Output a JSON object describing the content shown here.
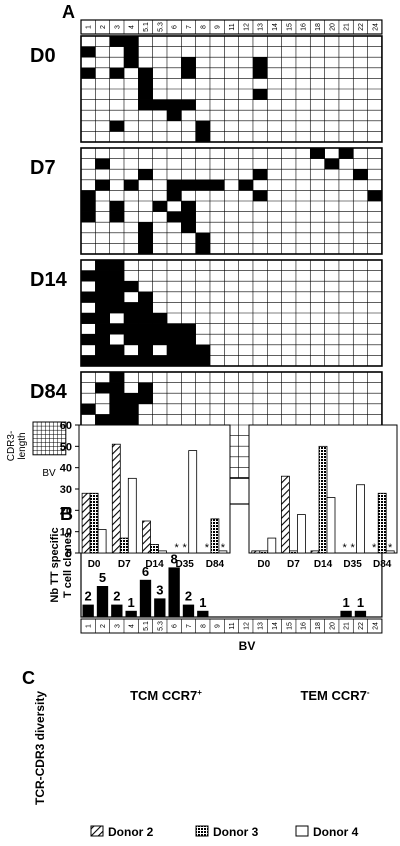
{
  "chart_data": [
    {
      "panel": "A",
      "type": "heatmap",
      "bv_labels": [
        "1",
        "2",
        "3",
        "4",
        "5.1",
        "5.3",
        "6",
        "7",
        "8",
        "9",
        "11",
        "12",
        "13",
        "14",
        "15",
        "16",
        "18",
        "20",
        "21",
        "22",
        "24"
      ],
      "rows_per_block": 10,
      "blocks": [
        {
          "label": "D0",
          "filled": [
            [
              0,
              2
            ],
            [
              0,
              3
            ],
            [
              1,
              0
            ],
            [
              1,
              3
            ],
            [
              2,
              3
            ],
            [
              2,
              7
            ],
            [
              2,
              12
            ],
            [
              3,
              0
            ],
            [
              3,
              2
            ],
            [
              3,
              4
            ],
            [
              3,
              7
            ],
            [
              3,
              12
            ],
            [
              4,
              4
            ],
            [
              5,
              4
            ],
            [
              5,
              12
            ],
            [
              6,
              4
            ],
            [
              6,
              5
            ],
            [
              6,
              6
            ],
            [
              6,
              7
            ],
            [
              7,
              6
            ],
            [
              8,
              2
            ],
            [
              8,
              8
            ],
            [
              9,
              8
            ]
          ]
        },
        {
          "label": "D7",
          "filled": [
            [
              0,
              16
            ],
            [
              0,
              18
            ],
            [
              1,
              1
            ],
            [
              1,
              17
            ],
            [
              2,
              4
            ],
            [
              2,
              12
            ],
            [
              2,
              19
            ],
            [
              3,
              1
            ],
            [
              3,
              3
            ],
            [
              3,
              6
            ],
            [
              3,
              7
            ],
            [
              3,
              8
            ],
            [
              3,
              9
            ],
            [
              3,
              11
            ],
            [
              4,
              0
            ],
            [
              4,
              6
            ],
            [
              4,
              12
            ],
            [
              4,
              20
            ],
            [
              5,
              0
            ],
            [
              5,
              2
            ],
            [
              5,
              5
            ],
            [
              5,
              7
            ],
            [
              6,
              0
            ],
            [
              6,
              2
            ],
            [
              6,
              6
            ],
            [
              6,
              7
            ],
            [
              7,
              4
            ],
            [
              7,
              7
            ],
            [
              8,
              4
            ],
            [
              8,
              8
            ],
            [
              9,
              4
            ],
            [
              9,
              8
            ]
          ]
        },
        {
          "label": "D14",
          "filled": [
            [
              0,
              1
            ],
            [
              0,
              2
            ],
            [
              1,
              0
            ],
            [
              1,
              1
            ],
            [
              1,
              2
            ],
            [
              2,
              1
            ],
            [
              2,
              2
            ],
            [
              2,
              3
            ],
            [
              3,
              0
            ],
            [
              3,
              1
            ],
            [
              3,
              2
            ],
            [
              3,
              4
            ],
            [
              4,
              1
            ],
            [
              4,
              2
            ],
            [
              4,
              3
            ],
            [
              4,
              4
            ],
            [
              5,
              0
            ],
            [
              5,
              1
            ],
            [
              5,
              3
            ],
            [
              5,
              4
            ],
            [
              5,
              5
            ],
            [
              6,
              1
            ],
            [
              6,
              2
            ],
            [
              6,
              3
            ],
            [
              6,
              4
            ],
            [
              6,
              5
            ],
            [
              6,
              6
            ],
            [
              6,
              7
            ],
            [
              7,
              0
            ],
            [
              7,
              1
            ],
            [
              7,
              3
            ],
            [
              7,
              4
            ],
            [
              7,
              5
            ],
            [
              7,
              6
            ],
            [
              7,
              7
            ],
            [
              8,
              1
            ],
            [
              8,
              2
            ],
            [
              8,
              4
            ],
            [
              8,
              6
            ],
            [
              8,
              7
            ],
            [
              8,
              8
            ],
            [
              9,
              0
            ],
            [
              9,
              1
            ],
            [
              9,
              2
            ],
            [
              9,
              3
            ],
            [
              9,
              4
            ],
            [
              9,
              5
            ],
            [
              9,
              6
            ],
            [
              9,
              7
            ],
            [
              9,
              8
            ]
          ]
        },
        {
          "label": "D84",
          "filled": [
            [
              0,
              2
            ],
            [
              1,
              1
            ],
            [
              1,
              2
            ],
            [
              1,
              4
            ],
            [
              2,
              2
            ],
            [
              2,
              3
            ],
            [
              2,
              4
            ],
            [
              3,
              0
            ],
            [
              3,
              2
            ],
            [
              3,
              3
            ],
            [
              4,
              1
            ],
            [
              4,
              2
            ],
            [
              4,
              3
            ],
            [
              5,
              1
            ],
            [
              5,
              2
            ],
            [
              5,
              4
            ],
            [
              6,
              0
            ],
            [
              6,
              1
            ],
            [
              6,
              2
            ],
            [
              6,
              3
            ],
            [
              6,
              12
            ],
            [
              6,
              17
            ],
            [
              6,
              19
            ],
            [
              7,
              0
            ],
            [
              7,
              1
            ],
            [
              7,
              2
            ],
            [
              7,
              3
            ],
            [
              8,
              0
            ],
            [
              8,
              1
            ],
            [
              8,
              3
            ],
            [
              8,
              5
            ],
            [
              9,
              0
            ],
            [
              9,
              1
            ],
            [
              9,
              2
            ],
            [
              9,
              8
            ]
          ]
        }
      ],
      "legend_ylabel": [
        "CDR3-",
        "length"
      ],
      "legend_xlabel": "BV"
    },
    {
      "panel": "B",
      "type": "bar",
      "categories": [
        "1",
        "2",
        "3",
        "4",
        "5.1",
        "5.3",
        "6",
        "7",
        "8",
        "9",
        "11",
        "12",
        "13",
        "14",
        "15",
        "16",
        "18",
        "20",
        "21",
        "22",
        "24"
      ],
      "values": [
        2,
        5,
        2,
        1,
        6,
        3,
        8,
        2,
        1,
        0,
        0,
        0,
        0,
        0,
        0,
        0,
        0,
        0,
        1,
        1,
        0
      ],
      "data_labels": [
        "2",
        "5",
        "2",
        "1",
        "6",
        "3",
        "8",
        "2",
        "1",
        "",
        "",
        "",
        "",
        "",
        "",
        "",
        "",
        "",
        "1",
        "1",
        ""
      ],
      "ylabel": [
        "Nb TT specific",
        "T cell clones"
      ],
      "xlabel": "BV",
      "ylim": [
        0,
        10
      ]
    },
    {
      "panel": "C",
      "type": "bar",
      "ylabel": "TCR-CDR3 diversity",
      "ylim": [
        0,
        60
      ],
      "yticks": [
        "0",
        "10",
        "20",
        "30",
        "40",
        "50",
        "60"
      ],
      "categories": [
        "D0",
        "D7",
        "D14",
        "D35",
        "D84"
      ],
      "panels": [
        {
          "title": "TCM CCR7+",
          "title_main": "TCM CCR7",
          "title_sup": "+",
          "series": [
            {
              "name": "Donor 2",
              "values": [
                28,
                51,
                15,
                0,
                0
              ]
            },
            {
              "name": "Donor 3",
              "values": [
                28,
                7,
                4,
                0,
                16
              ]
            },
            {
              "name": "Donor 4",
              "values": [
                11,
                35,
                1,
                48,
                1
              ]
            }
          ],
          "asterisks": [
            [
              3,
              0
            ],
            [
              3,
              1
            ],
            [
              4,
              0
            ],
            [
              4,
              2
            ]
          ]
        },
        {
          "title": "TEM CCR7-",
          "title_main": "TEM CCR7",
          "title_sup": "-",
          "series": [
            {
              "name": "Donor 2",
              "values": [
                1,
                36,
                1,
                0,
                0
              ]
            },
            {
              "name": "Donor 3",
              "values": [
                1,
                1,
                50,
                0,
                28
              ]
            },
            {
              "name": "Donor 4",
              "values": [
                7,
                18,
                26,
                32,
                1
              ]
            }
          ],
          "asterisks": [
            [
              3,
              0
            ],
            [
              3,
              1
            ],
            [
              4,
              0
            ],
            [
              4,
              2
            ]
          ]
        }
      ],
      "asterisk": "*",
      "legend": [
        "Donor 2",
        "Donor 3",
        "Donor 4"
      ],
      "legend_placement": "bottom"
    }
  ]
}
